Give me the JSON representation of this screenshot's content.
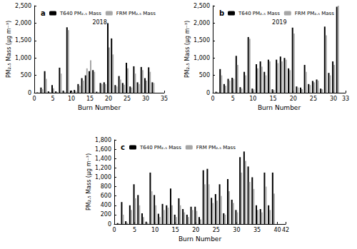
{
  "chart_data": [
    {
      "type": "bar",
      "title": "a",
      "annotations": [
        "2018"
      ],
      "xlabel": "Burn Number",
      "ylabel": "PM₂.₅ Mass (μg m⁻³)",
      "x": [
        1,
        2,
        3,
        4,
        5,
        6,
        7,
        8,
        9,
        10,
        11,
        12,
        13,
        14,
        15,
        16,
        17,
        18,
        19,
        20,
        21,
        22,
        23,
        24,
        25,
        26,
        27,
        28,
        29,
        30,
        31,
        32
      ],
      "series": [
        {
          "name": "T640 PM₂.₅ Mass",
          "color": "#000000",
          "values": [
            10,
            150,
            620,
            40,
            220,
            40,
            720,
            60,
            1880,
            60,
            80,
            250,
            420,
            500,
            620,
            650,
            30,
            280,
            300,
            2000,
            1560,
            220,
            480,
            280,
            860,
            180,
            760,
            300,
            740,
            420,
            730,
            300
          ]
        },
        {
          "name": "FRM PM₂.₅ Mass",
          "color": "#a6a6a6",
          "values": [
            5,
            100,
            400,
            20,
            130,
            20,
            550,
            30,
            1800,
            30,
            50,
            200,
            350,
            700,
            930,
            600,
            20,
            250,
            250,
            1300,
            1100,
            180,
            380,
            230,
            700,
            150,
            550,
            250,
            650,
            350,
            600,
            280
          ]
        }
      ],
      "xlim": [
        0,
        35
      ],
      "xticks": [
        0,
        5,
        10,
        15,
        20,
        25,
        30,
        35
      ],
      "ylim": [
        0,
        2500
      ],
      "yticks": [
        0,
        500,
        1000,
        1500,
        2000,
        2500
      ],
      "grid": false,
      "legend": "upper left"
    },
    {
      "type": "bar",
      "title": "b",
      "annotations": [
        "2019"
      ],
      "xlabel": "Burn Number",
      "ylabel": "PM₂.₅ Mass (μg m⁻³)",
      "x": [
        1,
        2,
        3,
        4,
        5,
        6,
        7,
        8,
        9,
        10,
        11,
        12,
        13,
        14,
        15,
        16,
        17,
        18,
        19,
        20,
        21,
        22,
        23,
        24,
        25,
        26,
        27,
        28,
        29,
        30,
        31
      ],
      "series": [
        {
          "name": "T640 PM₂.₅ Mass",
          "color": "#000000",
          "values": [
            30,
            680,
            250,
            400,
            430,
            1060,
            160,
            600,
            1600,
            120,
            820,
            900,
            600,
            950,
            100,
            950,
            1040,
            1000,
            700,
            1870,
            180,
            150,
            800,
            250,
            340,
            380,
            120,
            1900,
            570,
            900,
            2470
          ]
        },
        {
          "name": "FRM PM₂.₅ Mass",
          "color": "#a6a6a6",
          "values": [
            20,
            500,
            200,
            350,
            400,
            800,
            120,
            500,
            1550,
            100,
            700,
            750,
            500,
            900,
            80,
            850,
            900,
            950,
            650,
            1700,
            150,
            100,
            600,
            220,
            300,
            350,
            100,
            1650,
            500,
            800,
            2500
          ]
        }
      ],
      "xlim": [
        0,
        33
      ],
      "xticks": [
        0,
        5,
        10,
        15,
        20,
        25,
        30
      ],
      "ylim": [
        0,
        2500
      ],
      "yticks": [
        0,
        500,
        1000,
        1500,
        2000,
        2500
      ],
      "grid": false,
      "legend": "upper left"
    },
    {
      "type": "bar",
      "title": "c",
      "xlabel": "Burn Number",
      "ylabel": "PM₂.₅ Mass (μg m⁻³)",
      "x": [
        1,
        2,
        3,
        4,
        5,
        6,
        7,
        8,
        9,
        10,
        11,
        12,
        13,
        14,
        15,
        16,
        17,
        18,
        19,
        20,
        21,
        22,
        23,
        24,
        25,
        26,
        27,
        28,
        29,
        30,
        31,
        32,
        33,
        34,
        35,
        36,
        37,
        38,
        39
      ],
      "series": [
        {
          "name": "T640 PM₂.₅ Mass",
          "color": "#000000",
          "values": [
            20,
            470,
            60,
            400,
            850,
            620,
            230,
            50,
            1100,
            620,
            220,
            430,
            400,
            760,
            200,
            550,
            320,
            200,
            370,
            370,
            150,
            1150,
            1180,
            560,
            640,
            850,
            230,
            960,
            520,
            300,
            1430,
            1550,
            1230,
            1000,
            400,
            320,
            1100,
            400,
            1100
          ]
        },
        {
          "name": "FRM PM₂.₅ Mass",
          "color": "#a6a6a6",
          "values": [
            10,
            200,
            30,
            300,
            550,
            400,
            150,
            30,
            700,
            400,
            150,
            300,
            350,
            400,
            150,
            400,
            250,
            150,
            300,
            280,
            100,
            850,
            850,
            450,
            500,
            600,
            200,
            700,
            450,
            250,
            1100,
            1350,
            900,
            750,
            300,
            250,
            800,
            300,
            650
          ]
        }
      ],
      "xlim": [
        0,
        42
      ],
      "xticks": [
        0,
        5,
        10,
        15,
        20,
        25,
        30,
        35,
        40
      ],
      "ylim": [
        0,
        1800
      ],
      "yticks": [
        0,
        200,
        400,
        600,
        800,
        1000,
        1200,
        1400,
        1600,
        1800
      ],
      "grid": false,
      "legend": "upper left"
    }
  ]
}
